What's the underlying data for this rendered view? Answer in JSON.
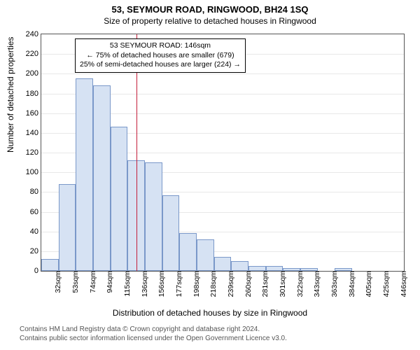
{
  "title": "53, SEYMOUR ROAD, RINGWOOD, BH24 1SQ",
  "subtitle": "Size of property relative to detached houses in Ringwood",
  "ylabel": "Number of detached properties",
  "xlabel": "Distribution of detached houses by size in Ringwood",
  "chart": {
    "type": "histogram",
    "ylim": [
      0,
      240
    ],
    "ytick_step": 20,
    "background_color": "#ffffff",
    "grid_color": "#e8e8e8",
    "border_color": "#555555",
    "bar_fill": "#d6e2f3",
    "bar_border": "#7a98c9",
    "ref_line_color": "#c41e3a",
    "ref_line_value": 146,
    "bars": [
      {
        "label": "32sqm",
        "value": 12
      },
      {
        "label": "53sqm",
        "value": 88
      },
      {
        "label": "74sqm",
        "value": 195
      },
      {
        "label": "94sqm",
        "value": 188
      },
      {
        "label": "115sqm",
        "value": 146
      },
      {
        "label": "136sqm",
        "value": 112
      },
      {
        "label": "156sqm",
        "value": 110
      },
      {
        "label": "177sqm",
        "value": 77
      },
      {
        "label": "198sqm",
        "value": 38
      },
      {
        "label": "218sqm",
        "value": 32
      },
      {
        "label": "239sqm",
        "value": 14
      },
      {
        "label": "260sqm",
        "value": 10
      },
      {
        "label": "281sqm",
        "value": 5
      },
      {
        "label": "301sqm",
        "value": 5
      },
      {
        "label": "322sqm",
        "value": 3
      },
      {
        "label": "343sqm",
        "value": 3
      },
      {
        "label": "363sqm",
        "value": 0
      },
      {
        "label": "384sqm",
        "value": 3
      },
      {
        "label": "405sqm",
        "value": 0
      },
      {
        "label": "425sqm",
        "value": 0
      },
      {
        "label": "446sqm",
        "value": 0
      }
    ]
  },
  "annotation": {
    "line1": "53 SEYMOUR ROAD: 146sqm",
    "line2": "← 75% of detached houses are smaller (679)",
    "line3": "25% of semi-detached houses are larger (224) →"
  },
  "credits": {
    "line1": "Contains HM Land Registry data © Crown copyright and database right 2024.",
    "line2": "Contains public sector information licensed under the Open Government Licence v3.0."
  }
}
